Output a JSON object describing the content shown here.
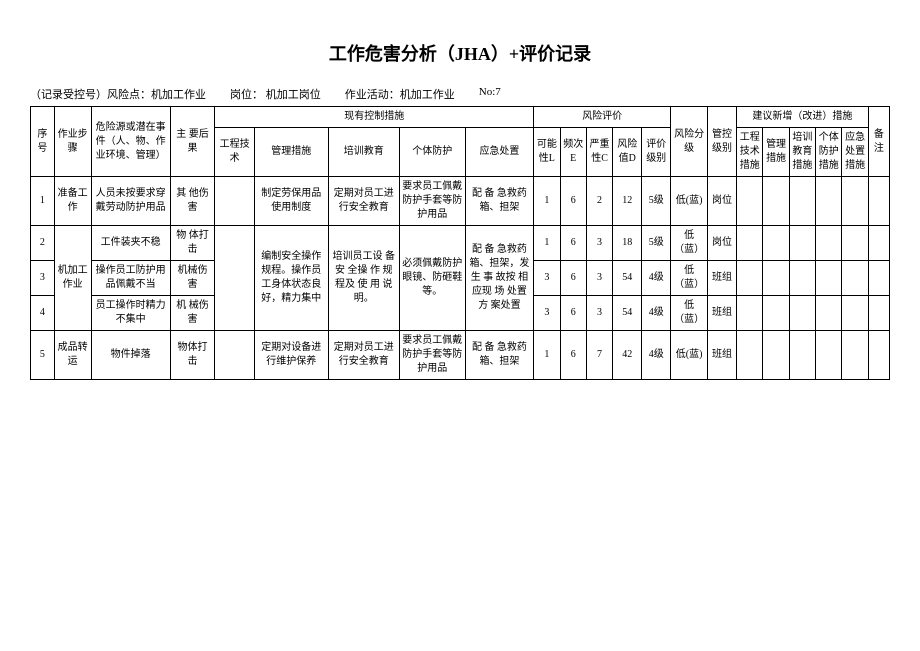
{
  "title": "工作危害分析（JHA）+评价记录",
  "meta": {
    "prefix": "（记录受控号）风险点：机加工作业",
    "post": "岗位： 机加工岗位",
    "activity": "作业活动：机加工作业",
    "no": "No:7"
  },
  "headers": {
    "seq": "序号",
    "step": "作业步骤",
    "hazard": "危险源或潜在事件（人、物、作业环境、管理）",
    "consequence": "主 要后果",
    "existing": "现有控制措施",
    "existing_sub": {
      "eng": "工程技术",
      "mgmt": "管理措施",
      "train": "培训教育",
      "ppe": "个体防护",
      "emer": "应急处置"
    },
    "risk_eval": "风险评价",
    "risk_sub": {
      "L": "可能性L",
      "E": "频次E",
      "C": "严重性C",
      "D": "风险值D",
      "grade": "评价级别"
    },
    "risk_level": "风险分级",
    "ctrl_level": "管控级别",
    "suggest": "建议新增（改进）措施",
    "suggest_sub": {
      "eng": "工程技术措施",
      "mgmt": "管理措施",
      "train": "培训教育措施",
      "ppe": "个体防护措施",
      "emer": "应急处置措施"
    },
    "note": "备注"
  },
  "rows": [
    {
      "seq": "1",
      "step": "准备工作",
      "hazard": "人员未按要求穿戴劳动防护用品",
      "consequence": "其 他伤害",
      "eng": "",
      "mgmt": "制定劳保用品使用制度",
      "train": "定期对员工进行安全教育",
      "ppe": "要求员工佩戴防护手套等防护用品",
      "emer": "配 备 急救药箱、担架",
      "L": "1",
      "E": "6",
      "C": "2",
      "D": "12",
      "grade": "5级",
      "risk_level": "低(蓝)",
      "ctrl": "岗位"
    },
    {
      "seq": "2",
      "step": "",
      "hazard": "工件装夹不稳",
      "consequence": "物 体打击",
      "eng": "",
      "mgmt": "",
      "train": "",
      "ppe": "",
      "emer": "配 备 急救药箱、担架，发生 事 故按 相 应现 场 处置 方 案处置",
      "L": "1",
      "E": "6",
      "C": "3",
      "D": "18",
      "grade": "5级",
      "risk_level": "低（蓝）",
      "ctrl": "岗位"
    },
    {
      "seq": "3",
      "step": "机加工作业",
      "hazard": "操作员工防护用品佩戴不当",
      "consequence": "机械伤害",
      "eng": "",
      "mgmt": "编制安全操作规程。操作员工身体状态良好，精力集中",
      "train": "培训员工设 备 安 全操 作 规 程及 使 用 说明。",
      "ppe": "必须佩戴防护眼镜、防砸鞋等。",
      "emer": "",
      "L": "3",
      "E": "6",
      "C": "3",
      "D": "54",
      "grade": "4级",
      "risk_level": "低（蓝）",
      "ctrl": "班组"
    },
    {
      "seq": "4",
      "step": "",
      "hazard": "员工操作时精力不集中",
      "consequence": "机 械伤害",
      "eng": "",
      "mgmt": "",
      "train": "",
      "ppe": "",
      "emer": "",
      "L": "3",
      "E": "6",
      "C": "3",
      "D": "54",
      "grade": "4级",
      "risk_level": "低（蓝）",
      "ctrl": "班组"
    },
    {
      "seq": "5",
      "step": "成品转运",
      "hazard": "物件掉落",
      "consequence": "物体打击",
      "eng": "",
      "mgmt": "定期对设备进行维护保养",
      "train": "定期对员工进行安全教育",
      "ppe": "要求员工佩戴防护手套等防护用品",
      "emer": "配 备 急救药箱、担架",
      "L": "1",
      "E": "6",
      "C": "7",
      "D": "42",
      "grade": "4级",
      "risk_level": "低(蓝)",
      "ctrl": "班组"
    }
  ]
}
